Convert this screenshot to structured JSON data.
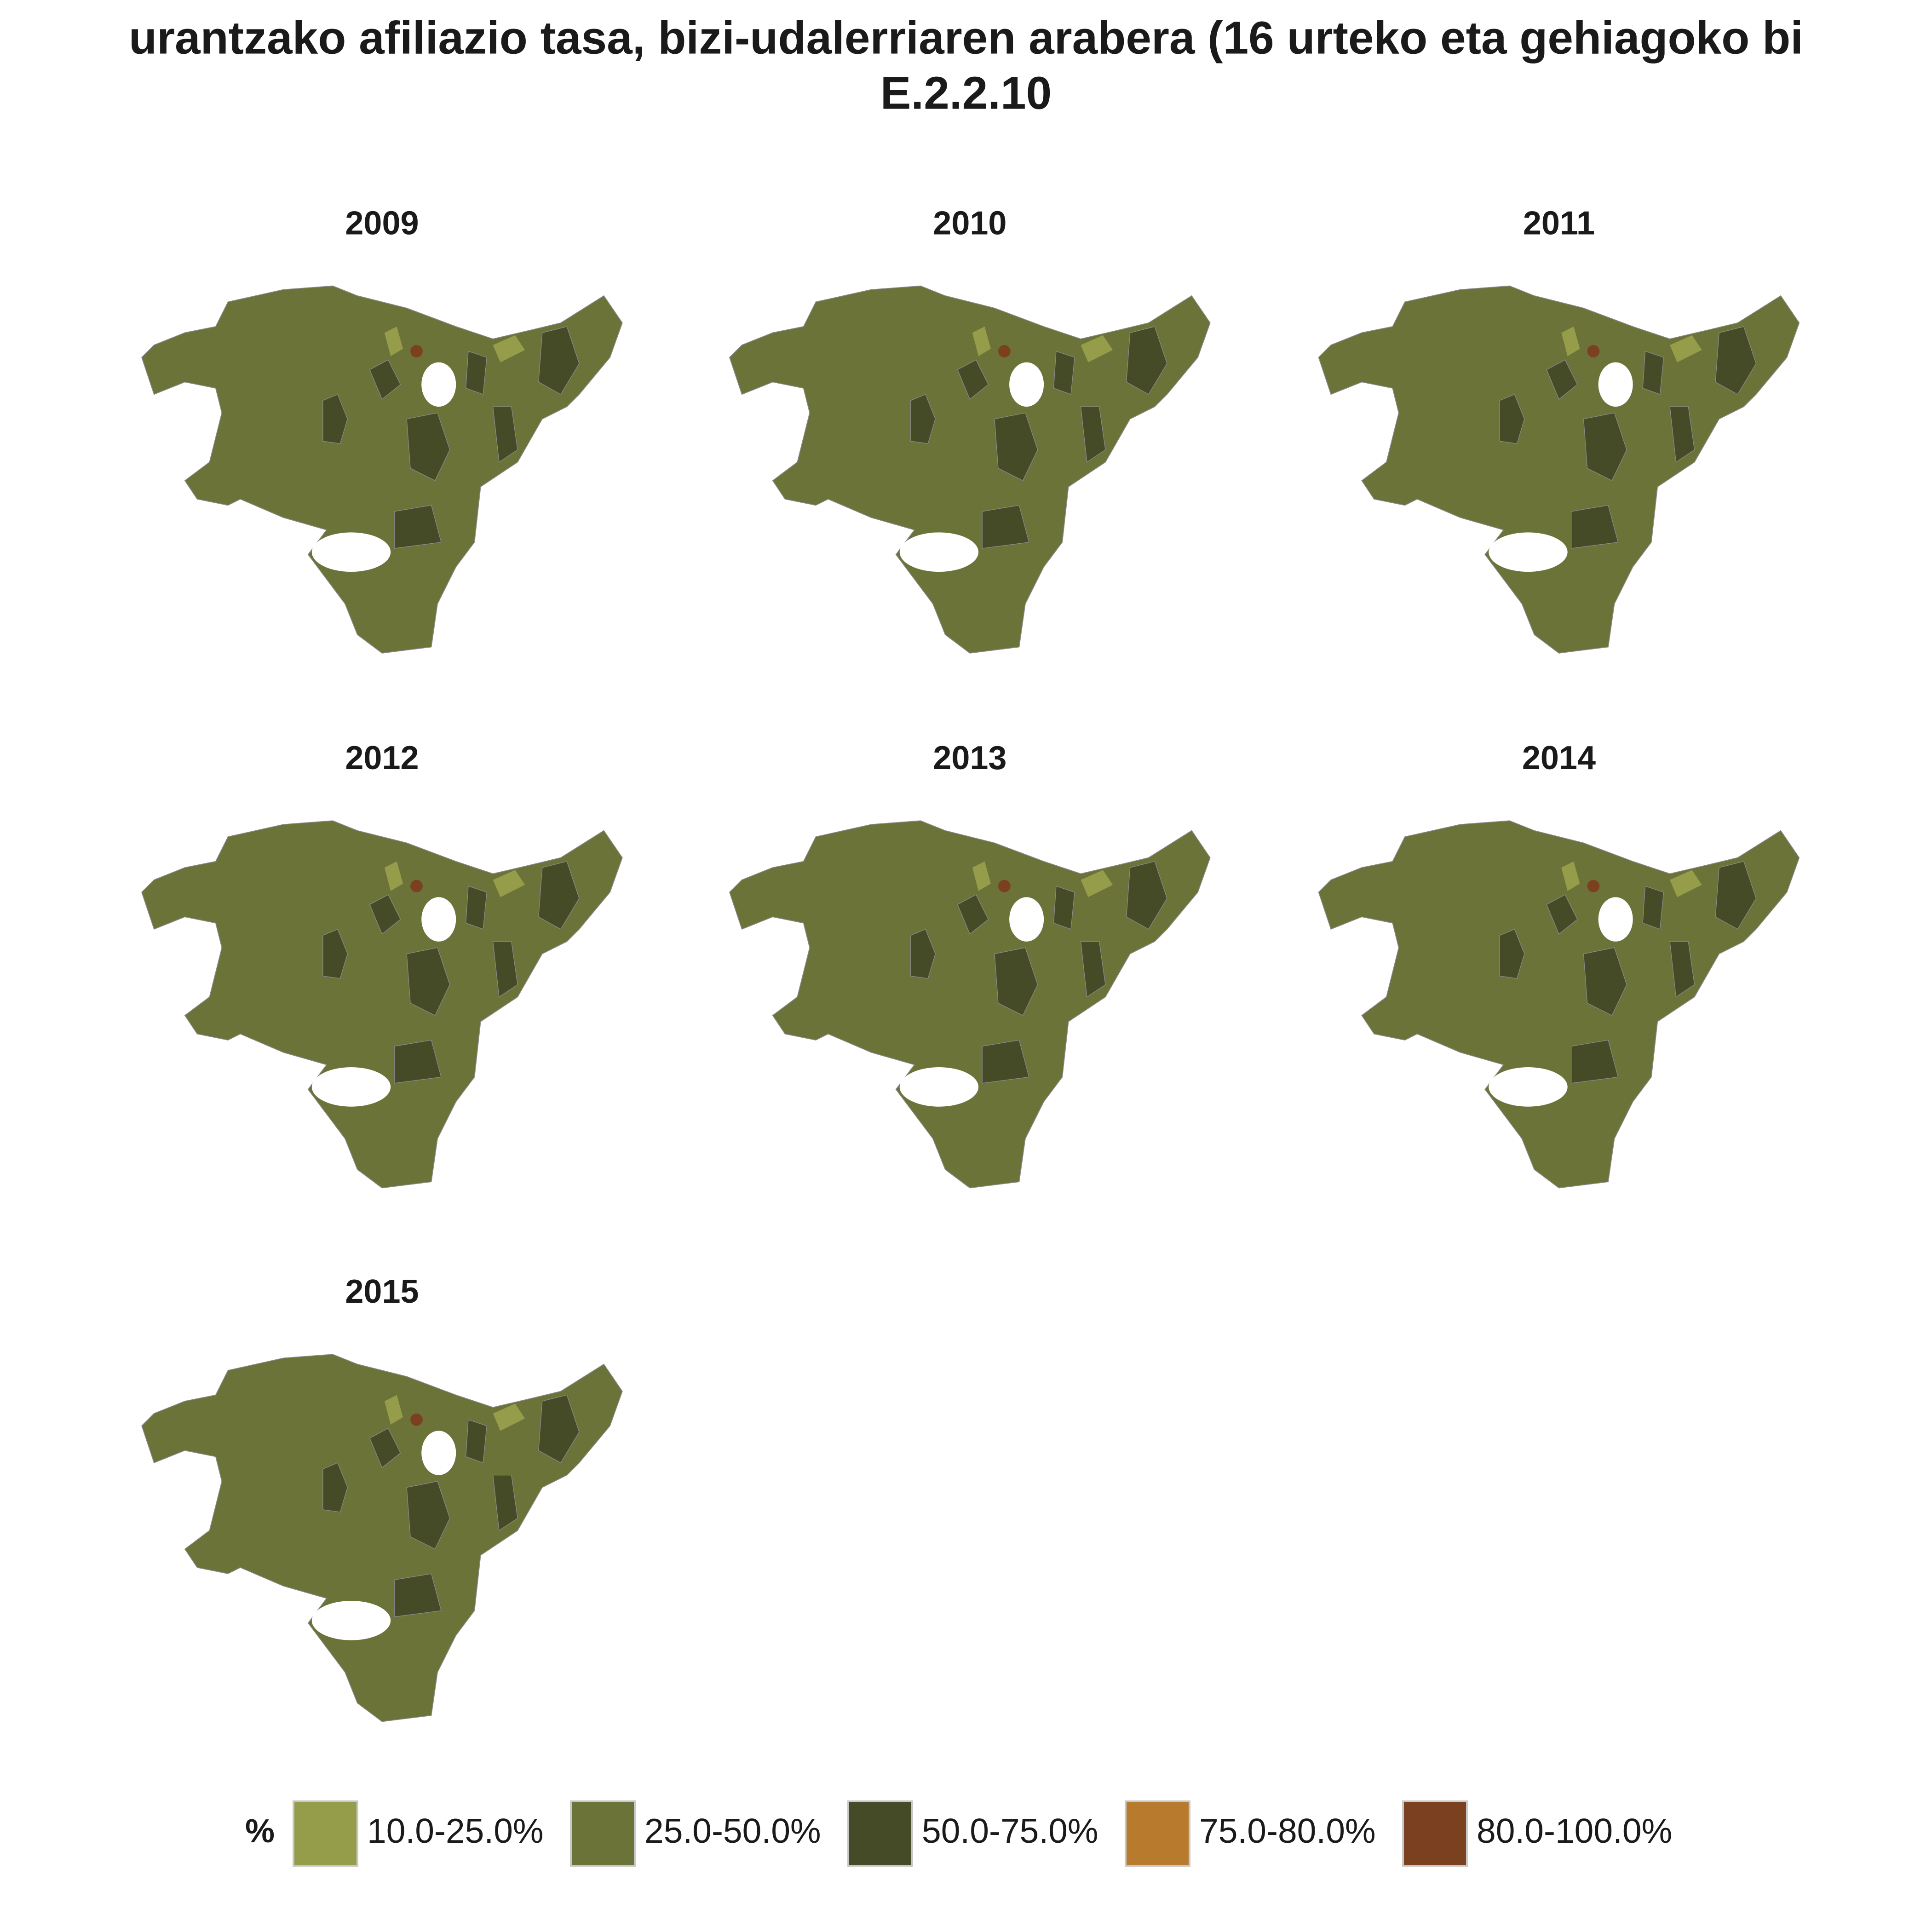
{
  "title": [
    "urantzako afiliazio tasa, bizi-udalerriaren arabera (16 urteko eta gehiagoko bi",
    "E.2.2.10"
  ],
  "panels": [
    "2009",
    "2010",
    "2011",
    "2012",
    "2013",
    "2014",
    "2015"
  ],
  "legend": {
    "title": "%",
    "items": [
      {
        "label": "10.0-25.0%",
        "color": "#959d4b"
      },
      {
        "label": "25.0-50.0%",
        "color": "#6b7339"
      },
      {
        "label": "50.0-75.0%",
        "color": "#454b27"
      },
      {
        "label": "75.0-80.0%",
        "color": "#b87a2d"
      },
      {
        "label": "80.0-100.0%",
        "color": "#7b401f"
      }
    ]
  }
}
